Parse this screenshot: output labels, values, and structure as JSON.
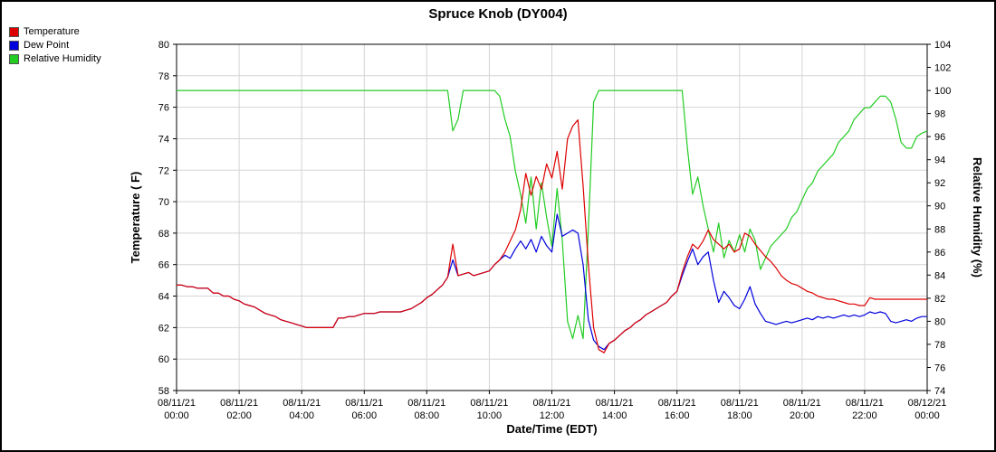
{
  "title": "Spruce Knob (DY004)",
  "legend": [
    {
      "label": "Temperature",
      "color": "#dd0000"
    },
    {
      "label": "Dew Point",
      "color": "#0000dd"
    },
    {
      "label": "Relative Humidity",
      "color": "#22cc22"
    }
  ],
  "axes": {
    "x_label": "Date/Time (EDT)",
    "y_left_label": "Temperature ( F)",
    "y_right_label": "Relative Humidity (%)",
    "y_left": {
      "min": 58,
      "max": 80,
      "step": 2
    },
    "y_right": {
      "min": 74,
      "max": 104,
      "step": 2
    },
    "x_ticks": [
      {
        "date": "08/11/21",
        "time": "00:00"
      },
      {
        "date": "08/11/21",
        "time": "02:00"
      },
      {
        "date": "08/11/21",
        "time": "04:00"
      },
      {
        "date": "08/11/21",
        "time": "06:00"
      },
      {
        "date": "08/11/21",
        "time": "08:00"
      },
      {
        "date": "08/11/21",
        "time": "10:00"
      },
      {
        "date": "08/11/21",
        "time": "12:00"
      },
      {
        "date": "08/11/21",
        "time": "14:00"
      },
      {
        "date": "08/11/21",
        "time": "16:00"
      },
      {
        "date": "08/11/21",
        "time": "18:00"
      },
      {
        "date": "08/11/21",
        "time": "20:00"
      },
      {
        "date": "08/11/21",
        "time": "22:00"
      },
      {
        "date": "08/12/21",
        "time": "00:00"
      }
    ]
  },
  "chart_data": {
    "type": "line",
    "title": "Spruce Knob (DY004)",
    "xlabel": "Date/Time (EDT)",
    "x_start": "08/11/21 00:00",
    "x_end": "08/12/21 00:00",
    "x_interval_minutes": 10,
    "y_left_axis": {
      "label": "Temperature ( F)",
      "range": [
        58,
        80
      ]
    },
    "y_right_axis": {
      "label": "Relative Humidity (%)",
      "range": [
        74,
        104
      ]
    },
    "grid": true,
    "legend_position": "top-left",
    "series": [
      {
        "name": "Temperature",
        "axis": "left",
        "color": "#dd0000",
        "values": [
          64.7,
          64.7,
          64.6,
          64.6,
          64.5,
          64.5,
          64.5,
          64.2,
          64.2,
          64.0,
          64.0,
          63.8,
          63.7,
          63.5,
          63.4,
          63.3,
          63.1,
          62.9,
          62.8,
          62.7,
          62.5,
          62.4,
          62.3,
          62.2,
          62.1,
          62.0,
          62.0,
          62.0,
          62.0,
          62.0,
          62.0,
          62.6,
          62.6,
          62.7,
          62.7,
          62.8,
          62.9,
          62.9,
          62.9,
          63.0,
          63.0,
          63.0,
          63.0,
          63.0,
          63.1,
          63.2,
          63.4,
          63.6,
          63.9,
          64.1,
          64.4,
          64.7,
          65.2,
          67.3,
          65.3,
          65.4,
          65.5,
          65.3,
          65.4,
          65.5,
          65.6,
          66.0,
          66.3,
          66.8,
          67.5,
          68.2,
          69.5,
          71.8,
          70.4,
          71.6,
          70.8,
          72.4,
          71.5,
          73.2,
          70.8,
          74.0,
          74.8,
          75.2,
          71.0,
          66.0,
          62.0,
          60.6,
          60.4,
          61.0,
          61.2,
          61.5,
          61.8,
          62.0,
          62.3,
          62.5,
          62.8,
          63.0,
          63.2,
          63.4,
          63.6,
          64.0,
          64.3,
          65.5,
          66.5,
          67.3,
          67.0,
          67.5,
          68.2,
          67.6,
          67.3,
          67.0,
          67.3,
          66.8,
          67.0,
          68.0,
          67.8,
          67.3,
          66.9,
          66.5,
          66.2,
          65.8,
          65.3,
          65.0,
          64.8,
          64.7,
          64.5,
          64.3,
          64.2,
          64.0,
          63.9,
          63.8,
          63.8,
          63.7,
          63.6,
          63.5,
          63.5,
          63.4,
          63.4,
          63.9,
          63.8,
          63.8,
          63.8,
          63.8,
          63.8,
          63.8,
          63.8,
          63.8,
          63.8,
          63.8,
          63.8
        ]
      },
      {
        "name": "Dew Point",
        "axis": "left",
        "color": "#0000dd",
        "values": [
          64.7,
          64.7,
          64.6,
          64.6,
          64.5,
          64.5,
          64.5,
          64.2,
          64.2,
          64.0,
          64.0,
          63.8,
          63.7,
          63.5,
          63.4,
          63.3,
          63.1,
          62.9,
          62.8,
          62.7,
          62.5,
          62.4,
          62.3,
          62.2,
          62.1,
          62.0,
          62.0,
          62.0,
          62.0,
          62.0,
          62.0,
          62.6,
          62.6,
          62.7,
          62.7,
          62.8,
          62.9,
          62.9,
          62.9,
          63.0,
          63.0,
          63.0,
          63.0,
          63.0,
          63.1,
          63.2,
          63.4,
          63.6,
          63.9,
          64.1,
          64.4,
          64.7,
          65.2,
          66.3,
          65.3,
          65.4,
          65.5,
          65.3,
          65.4,
          65.5,
          65.6,
          66.0,
          66.3,
          66.6,
          66.4,
          67.0,
          67.5,
          67.0,
          67.6,
          66.8,
          67.8,
          67.2,
          66.8,
          69.2,
          67.8,
          68.0,
          68.2,
          68.0,
          66.0,
          62.5,
          61.2,
          60.8,
          60.6,
          61.0,
          61.2,
          61.5,
          61.8,
          62.0,
          62.3,
          62.5,
          62.8,
          63.0,
          63.2,
          63.4,
          63.6,
          64.0,
          64.3,
          65.3,
          66.2,
          67.0,
          66.0,
          66.5,
          66.8,
          65.0,
          63.6,
          64.3,
          63.9,
          63.4,
          63.2,
          63.8,
          64.6,
          63.5,
          62.9,
          62.4,
          62.3,
          62.2,
          62.3,
          62.4,
          62.3,
          62.4,
          62.5,
          62.6,
          62.5,
          62.7,
          62.6,
          62.7,
          62.6,
          62.7,
          62.8,
          62.7,
          62.8,
          62.7,
          62.8,
          63.0,
          62.9,
          63.0,
          62.9,
          62.4,
          62.3,
          62.4,
          62.5,
          62.4,
          62.6,
          62.7,
          62.7
        ]
      },
      {
        "name": "Relative Humidity",
        "axis": "right",
        "color": "#22cc22",
        "values": [
          100,
          100,
          100,
          100,
          100,
          100,
          100,
          100,
          100,
          100,
          100,
          100,
          100,
          100,
          100,
          100,
          100,
          100,
          100,
          100,
          100,
          100,
          100,
          100,
          100,
          100,
          100,
          100,
          100,
          100,
          100,
          100,
          100,
          100,
          100,
          100,
          100,
          100,
          100,
          100,
          100,
          100,
          100,
          100,
          100,
          100,
          100,
          100,
          100,
          100,
          100,
          100,
          100,
          96.5,
          97.5,
          100,
          100,
          100,
          100,
          100,
          100,
          100,
          99.5,
          97.5,
          96.0,
          93.0,
          91.0,
          88.5,
          92.5,
          88.0,
          92.0,
          89.0,
          86.5,
          91.5,
          87.0,
          80.0,
          78.5,
          80.5,
          78.5,
          88.0,
          99.0,
          100,
          100,
          100,
          100,
          100,
          100,
          100,
          100,
          100,
          100,
          100,
          100,
          100,
          100,
          100,
          100,
          100,
          95.0,
          91.0,
          92.5,
          90.0,
          88.0,
          86.0,
          88.5,
          85.5,
          87.0,
          86.0,
          87.5,
          86.0,
          88.0,
          87.0,
          84.5,
          85.5,
          86.5,
          87.0,
          87.5,
          88.0,
          89.0,
          89.5,
          90.5,
          91.5,
          92.0,
          93.0,
          93.5,
          94.0,
          94.5,
          95.5,
          96.0,
          96.5,
          97.5,
          98.0,
          98.5,
          98.5,
          99.0,
          99.5,
          99.5,
          99.0,
          97.5,
          95.5,
          95.0,
          95.0,
          96.0,
          96.3,
          96.5
        ]
      }
    ]
  }
}
